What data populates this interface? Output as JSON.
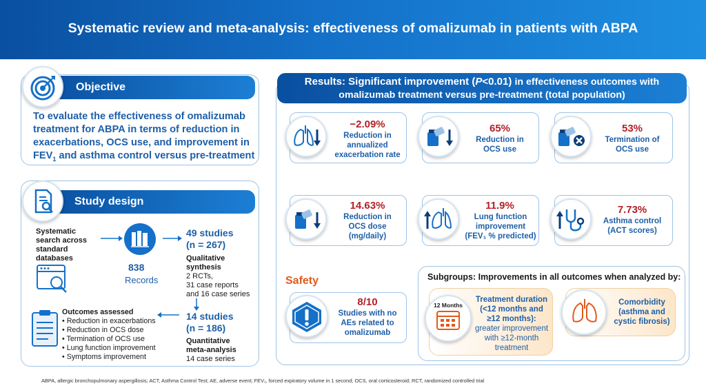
{
  "banner": {
    "title": "Systematic review and meta-analysis: effectiveness of omalizumab in patients with ABPA"
  },
  "objective": {
    "heading": "Objective",
    "line1": "To evaluate the effectiveness of omalizumab",
    "line2": "treatment for ABPA in terms of reduction in",
    "line3": "exacerbations, OCS use, and improvement in",
    "line4a": "FEV",
    "line4sub": "1",
    "line4b": " and asthma control versus pre-treatment"
  },
  "study_design": {
    "heading": "Study design",
    "search": [
      "Systematic",
      "search across",
      "standard",
      "databases"
    ],
    "records_count": "838",
    "records_label": "Records",
    "studies1_title": "49 studies",
    "studies1_n": "(n = 267)",
    "qual_title1": "Qualitative",
    "qual_title2": "synthesis",
    "qual_items": [
      "2 RCTs,",
      "31 case reports",
      "and 16 case series"
    ],
    "studies2_title": "14 studies",
    "studies2_n": "(n = 186)",
    "quant_title1": "Quantitative",
    "quant_title2": "meta-analysis",
    "quant_items": [
      "14 case series"
    ],
    "outcomes_title": "Outcomes assessed",
    "outcomes": [
      "• Reduction in exacerbations",
      "• Reduction in OCS dose",
      "• Termination of OCS use",
      "• Lung function improvement",
      "• Symptoms improvement"
    ]
  },
  "results": {
    "title_a": "Results: Significant improvement (",
    "title_p": "P",
    "title_b": "<0.01) ",
    "title_c": "in effectiveness outcomes with",
    "title_line2": "omalizumab treatment versus pre-treatment (total population)",
    "cards": [
      {
        "value": "−2.09%",
        "label": [
          "Reduction in",
          "annualized",
          "exacerbation rate"
        ]
      },
      {
        "value": "65%",
        "label": [
          "Reduction in",
          "OCS use"
        ]
      },
      {
        "value": "53%",
        "label": [
          "Termination of",
          "OCS use"
        ]
      },
      {
        "value": "14.63%",
        "label": [
          "Reduction in",
          "OCS dose",
          "(mg/daily)"
        ]
      },
      {
        "value": "11.9%",
        "label": [
          "Lung function",
          "improvement",
          "(FEV₁ % predicted)"
        ]
      },
      {
        "value": "7.73%",
        "label": [
          "Asthma control",
          "(ACT scores)"
        ]
      }
    ]
  },
  "safety": {
    "heading": "Safety",
    "value": "8/10",
    "label": [
      "Studies with no",
      "AEs related to",
      "omalizumab"
    ]
  },
  "subgroups": {
    "title": "Subgroups: Improvements in all outcomes when analyzed by:",
    "calendar_label": "12 Months",
    "duration_lines": [
      "Treatment duration",
      "(<12 months and",
      "≥12 months):"
    ],
    "duration_detail": [
      "greater improvement",
      "with ≥12-month",
      "treatment"
    ],
    "comorbidity_lines": [
      "Comorbidity",
      "(asthma and",
      "cystic fibrosis)"
    ]
  },
  "footer": {
    "text": "ABPA, allergic bronchopulmonary aspergillosis; ACT, Asthma Control Test; AE, adverse event; FEV₁, forced expiratory volume in 1 second; OCS, oral corticosteroid; RCT, randomized controlled trial"
  },
  "colors": {
    "brand_blue": "#1470c8",
    "value_red": "#b32025",
    "safety_orange": "#e05a1a",
    "text_blue": "#1d5fa8"
  }
}
